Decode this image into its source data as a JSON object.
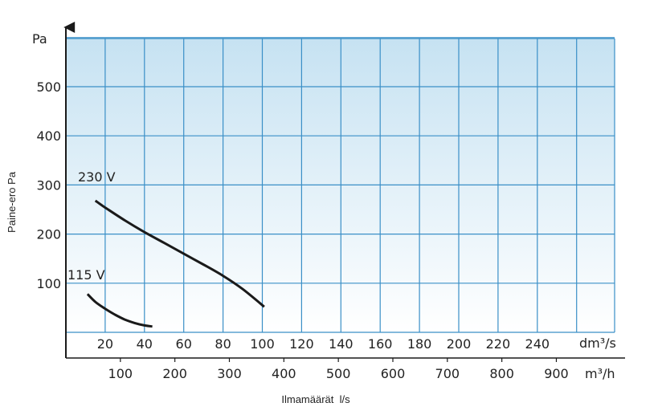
{
  "chart_data": {
    "type": "line",
    "ylabel_top": "Pa",
    "ylabel_side": "Paine-ero Pa",
    "xlabel": "Ilmamäärät  l/s",
    "x_unit_primary": "dm³/s",
    "x_unit_secondary": "m³/h",
    "ylim": [
      0,
      600
    ],
    "xlim": [
      0,
      260
    ],
    "x_primary_ticks": [
      20,
      40,
      60,
      80,
      100,
      120,
      140,
      160,
      180,
      200,
      220,
      240
    ],
    "x_secondary_ticks": [
      100,
      200,
      300,
      400,
      500,
      600,
      700,
      800,
      900
    ],
    "y_ticks": [
      100,
      200,
      300,
      400,
      500
    ],
    "grid": true,
    "series": [
      {
        "name": "230 V",
        "color": "#1a1a1a",
        "x": [
          15,
          20,
          30,
          40,
          50,
          60,
          70,
          80,
          90,
          101
        ],
        "y": [
          268,
          254,
          228,
          204,
          182,
          160,
          138,
          115,
          88,
          52
        ]
      },
      {
        "name": "115 V",
        "color": "#1a1a1a",
        "x": [
          11,
          15,
          20,
          25,
          30,
          35,
          40,
          44
        ],
        "y": [
          78,
          62,
          48,
          36,
          26,
          19,
          14,
          12
        ]
      }
    ]
  }
}
